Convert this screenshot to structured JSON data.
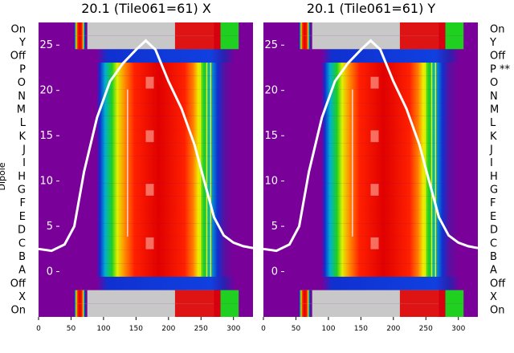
{
  "figure": {
    "ylabel": "Dipole"
  },
  "chart_data": [
    {
      "type": "heatmap",
      "title": "20.1 (Tile061=61) X",
      "row_labels_top_to_bottom": [
        "On",
        "Y",
        "Off",
        "P",
        "O",
        "N",
        "M",
        "L",
        "K",
        "J",
        "I",
        "H",
        "G",
        "F",
        "E",
        "D",
        "C",
        "B",
        "A",
        "Off",
        "X",
        "On"
      ],
      "x_ticks": [
        0,
        50,
        100,
        150,
        200,
        250,
        300
      ],
      "xlim": [
        0,
        330
      ],
      "overlay_ticks": [
        25,
        20,
        15,
        10,
        5,
        0
      ],
      "overlay_ylim": [
        -5,
        27.5
      ],
      "overlay_x": [
        0,
        20,
        40,
        55,
        70,
        90,
        110,
        130,
        150,
        165,
        180,
        200,
        220,
        240,
        255,
        270,
        285,
        300,
        315,
        330
      ],
      "overlay_y": [
        2.5,
        2.3,
        3,
        5,
        11,
        17,
        21,
        23,
        24.5,
        25.5,
        24.5,
        21,
        18,
        14,
        10,
        6,
        4,
        3.2,
        2.8,
        2.6
      ]
    },
    {
      "type": "heatmap",
      "title": "20.1 (Tile061=61) Y",
      "row_labels_top_to_bottom": [
        "On",
        "Y",
        "Off",
        "P **",
        "O",
        "N",
        "M",
        "L",
        "K",
        "J",
        "I",
        "H",
        "G",
        "F",
        "E",
        "D",
        "C",
        "B",
        "A",
        "Off",
        "X",
        "On"
      ],
      "x_ticks": [
        0,
        50,
        100,
        150,
        200,
        250,
        300
      ],
      "xlim": [
        0,
        330
      ],
      "overlay_ticks": [
        25,
        20,
        15,
        10,
        5,
        0
      ],
      "overlay_ylim": [
        -5,
        27.5
      ],
      "overlay_x": [
        0,
        20,
        40,
        55,
        70,
        90,
        110,
        130,
        150,
        165,
        180,
        200,
        220,
        240,
        255,
        270,
        285,
        300,
        315,
        330
      ],
      "overlay_y": [
        2.5,
        2.3,
        3,
        5,
        11,
        17,
        21,
        23,
        24.5,
        25.5,
        24.5,
        21,
        18,
        14,
        10,
        6,
        4,
        3.2,
        2.8,
        2.6
      ]
    }
  ],
  "colors": {
    "background": "#ffffff",
    "heat_low": "#7a009a",
    "heat_mid_low": "#1030d0",
    "heat_green": "#20d020",
    "heat_yellow": "#f0f000",
    "heat_orange": "#ff8000",
    "heat_high": "#e00000",
    "missing": "#c8c8c8",
    "overlay": "#ffffff"
  }
}
